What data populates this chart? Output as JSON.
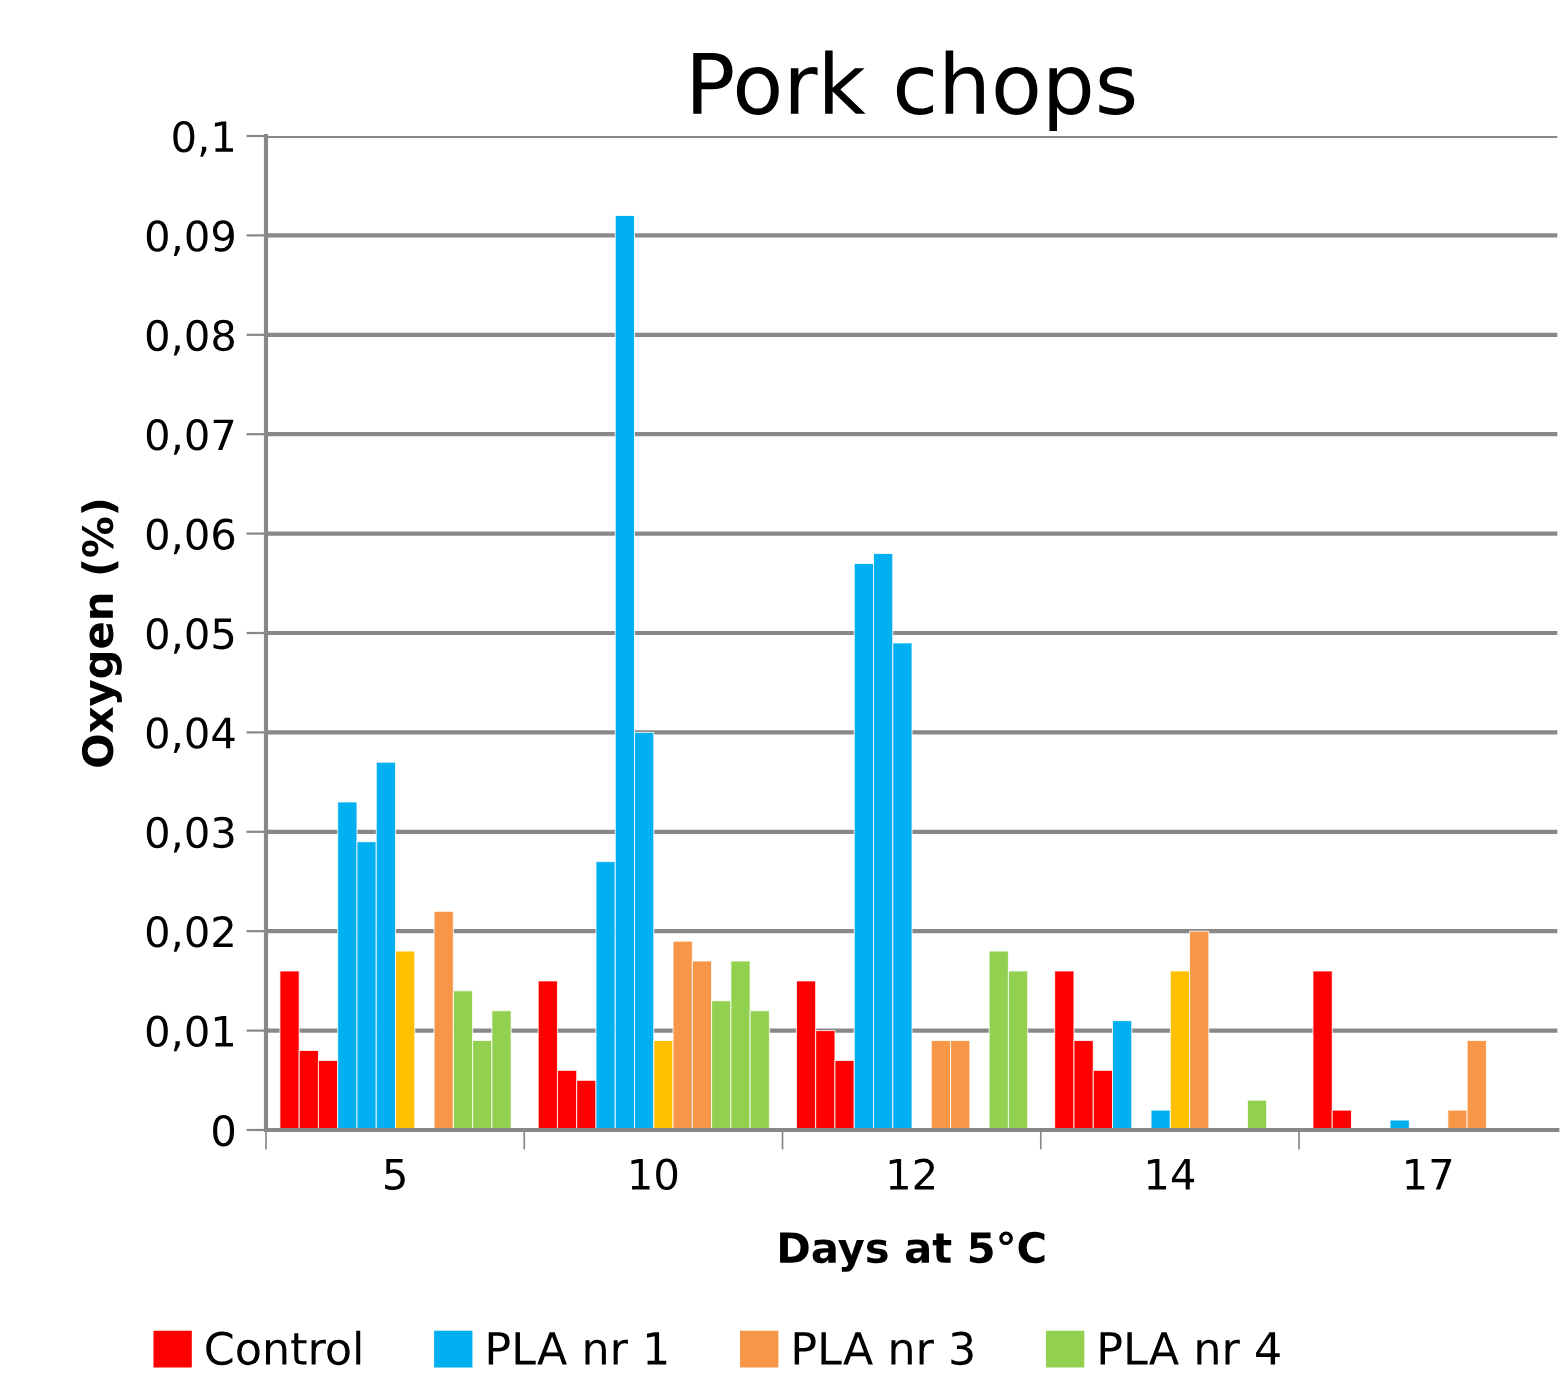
{
  "chart_data": {
    "type": "bar",
    "title": "Pork chops",
    "xlabel": "Days at 5°C",
    "ylabel": "Oxygen (%)",
    "categories": [
      "5",
      "10",
      "12",
      "14",
      "17"
    ],
    "series": [
      {
        "name": "Control",
        "color": "#ff0000",
        "values": [
          0.016,
          0.015,
          0.015,
          0.016,
          0.016
        ]
      },
      {
        "color": "#ff0000",
        "values": [
          0.008,
          0.006,
          0.01,
          0.009,
          0.002
        ]
      },
      {
        "color": "#ff0000",
        "values": [
          0.007,
          0.005,
          0.007,
          0.006,
          null
        ]
      },
      {
        "name": "PLA nr 1",
        "color": "#00b0f0",
        "values": [
          0.033,
          0.027,
          0.057,
          0.011,
          null
        ]
      },
      {
        "color": "#00b0f0",
        "values": [
          0.029,
          0.092,
          0.058,
          null,
          0.001
        ]
      },
      {
        "color": "#00b0f0",
        "values": [
          0.037,
          0.04,
          0.049,
          0.002,
          null
        ]
      },
      {
        "color": "#ffc000",
        "values": [
          0.018,
          0.009,
          null,
          0.016,
          null
        ]
      },
      {
        "name": "PLA nr 3",
        "color": "#f79646",
        "values": [
          null,
          0.019,
          0.009,
          0.02,
          0.002
        ]
      },
      {
        "color": "#f79646",
        "values": [
          0.022,
          0.017,
          0.009,
          null,
          0.009
        ]
      },
      {
        "name": "PLA nr 4",
        "color": "#92d050",
        "values": [
          0.014,
          0.013,
          null,
          null,
          null
        ]
      },
      {
        "color": "#92d050",
        "values": [
          0.009,
          0.017,
          0.018,
          0.003,
          null
        ]
      },
      {
        "color": "#92d050",
        "values": [
          0.012,
          0.012,
          0.016,
          null,
          null
        ]
      }
    ],
    "ylim": [
      0,
      0.1
    ],
    "yticks": [
      {
        "value": 0,
        "label": "0"
      },
      {
        "value": 0.01,
        "label": "0,01"
      },
      {
        "value": 0.02,
        "label": "0,02"
      },
      {
        "value": 0.03,
        "label": "0,03"
      },
      {
        "value": 0.04,
        "label": "0,04"
      },
      {
        "value": 0.05,
        "label": "0,05"
      },
      {
        "value": 0.06,
        "label": "0,06"
      },
      {
        "value": 0.07,
        "label": "0,07"
      },
      {
        "value": 0.08,
        "label": "0,08"
      },
      {
        "value": 0.09,
        "label": "0,09"
      },
      {
        "value": 0.1,
        "label": "0,1"
      }
    ],
    "grid": "y",
    "legend": "bottom"
  }
}
